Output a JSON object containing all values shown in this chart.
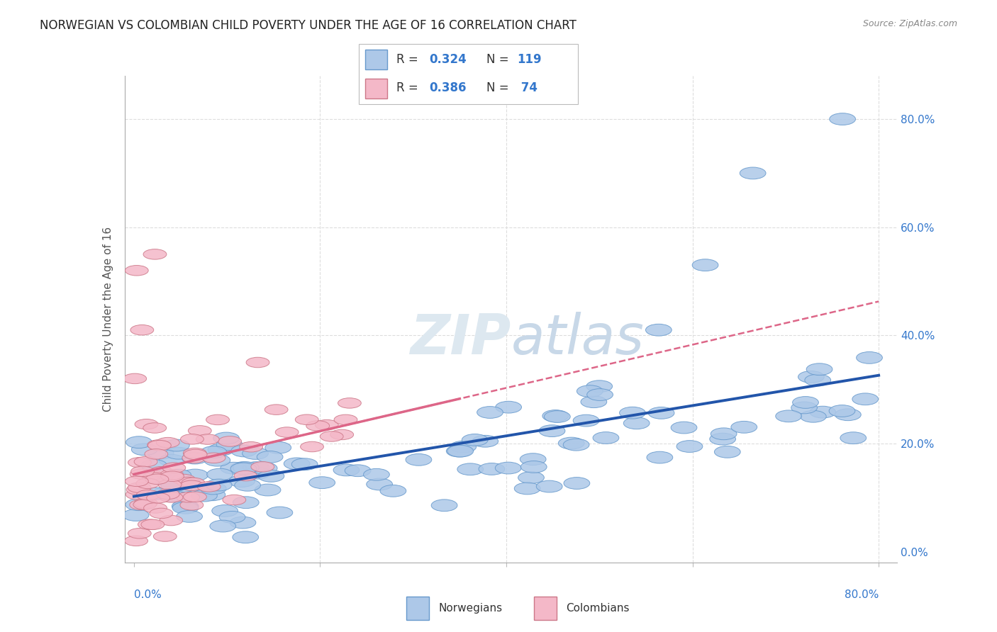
{
  "title": "NORWEGIAN VS COLOMBIAN CHILD POVERTY UNDER THE AGE OF 16 CORRELATION CHART",
  "source": "Source: ZipAtlas.com",
  "ylabel": "Child Poverty Under the Age of 16",
  "xlim": [
    -0.01,
    0.82
  ],
  "ylim": [
    -0.02,
    0.88
  ],
  "right_ytick_vals": [
    0.0,
    0.2,
    0.4,
    0.6,
    0.8
  ],
  "right_yticklabels": [
    "0.0%",
    "20.0%",
    "40.0%",
    "60.0%",
    "80.0%"
  ],
  "norwegian_color": "#adc8e8",
  "norwegian_edge_color": "#6699cc",
  "colombian_color": "#f4b8c8",
  "colombian_edge_color": "#cc7788",
  "norwegian_line_color": "#2255aa",
  "colombian_line_color": "#dd6688",
  "background_color": "#ffffff",
  "grid_color": "#dddddd",
  "watermark_color": "#dde8f0",
  "title_fontsize": 12,
  "axis_label_fontsize": 11,
  "tick_fontsize": 11,
  "n_norwegian": 119,
  "n_colombian": 74,
  "r_norwegian": 0.324,
  "r_colombian": 0.386,
  "nor_seed": 1234,
  "col_seed": 5678
}
